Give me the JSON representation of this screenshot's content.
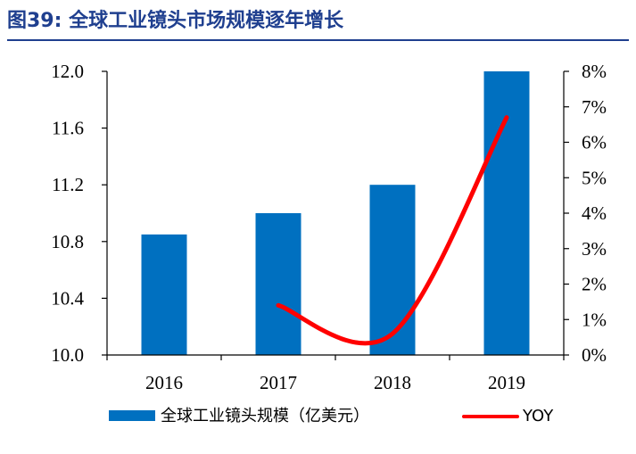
{
  "figure": {
    "title": "图39:  全球工业镜头市场规模逐年增长"
  },
  "chart_data": {
    "type": "bar",
    "categories": [
      "2016",
      "2017",
      "2018",
      "2019"
    ],
    "series": [
      {
        "name": "全球工业镜头规模（亿美元）",
        "type": "bar",
        "axis": "left",
        "color": "#0070c0",
        "values": [
          10.85,
          11.0,
          11.2,
          12.0
        ]
      },
      {
        "name": "YOY",
        "type": "line",
        "axis": "right",
        "color": "#ff0000",
        "values": [
          null,
          1.4,
          0.6,
          6.7
        ]
      }
    ],
    "y_left": {
      "min": 10.0,
      "max": 12.0,
      "ticks": [
        10.0,
        10.4,
        10.8,
        11.2,
        11.6,
        12.0
      ],
      "tick_labels": [
        "10.0",
        "10.4",
        "10.8",
        "11.2",
        "11.6",
        "12.0"
      ]
    },
    "y_right": {
      "min": 0,
      "max": 8,
      "ticks": [
        0,
        1,
        2,
        3,
        4,
        5,
        6,
        7,
        8
      ],
      "tick_labels": [
        "0%",
        "1%",
        "2%",
        "3%",
        "4%",
        "5%",
        "6%",
        "7%",
        "8%"
      ]
    },
    "legend": {
      "position": "bottom",
      "entries": [
        "全球工业镜头规模（亿美元）",
        "YOY"
      ]
    },
    "grid": false
  }
}
